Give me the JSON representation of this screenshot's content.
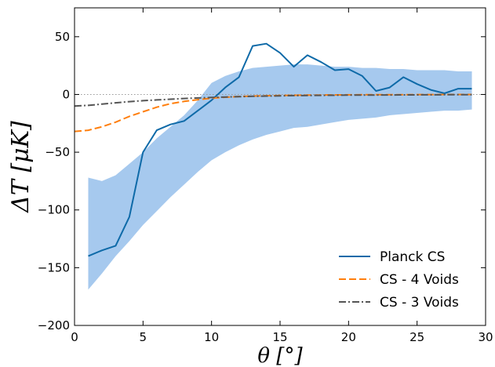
{
  "chart_data": {
    "type": "line",
    "title": "",
    "xlabel": "θ [°]",
    "ylabel": "ΔT [μK]",
    "xlim": [
      0,
      30
    ],
    "ylim": [
      -200,
      75
    ],
    "xticks": [
      0,
      5,
      10,
      15,
      20,
      25,
      30
    ],
    "yticks": [
      -200,
      -150,
      -100,
      -50,
      0,
      50
    ],
    "grid": false,
    "legend_position": "lower-right",
    "zero_line": true,
    "band": {
      "color": "#a6c9ee",
      "x": [
        1,
        2,
        3,
        4,
        5,
        6,
        7,
        8,
        9,
        10,
        11,
        12,
        13,
        14,
        15,
        16,
        17,
        18,
        19,
        20,
        21,
        22,
        23,
        24,
        25,
        26,
        27,
        28,
        29
      ],
      "upper": [
        -72,
        -75,
        -70,
        -60,
        -50,
        -38,
        -28,
        -18,
        -5,
        10,
        16,
        20,
        23,
        24,
        25,
        26,
        26,
        25,
        24,
        24,
        23,
        23,
        22,
        22,
        21,
        21,
        21,
        20,
        20
      ],
      "lower": [
        -169,
        -155,
        -140,
        -127,
        -113,
        -101,
        -89,
        -78,
        -67,
        -57,
        -50,
        -44,
        -39,
        -35,
        -32,
        -29,
        -28,
        -26,
        -24,
        -22,
        -21,
        -20,
        -18,
        -17,
        -16,
        -15,
        -14,
        -14,
        -13
      ]
    },
    "series": [
      {
        "name": "Planck CS",
        "color": "#0e6aa8",
        "dash": "solid",
        "x": [
          1,
          2,
          3,
          4,
          5,
          6,
          7,
          8,
          9,
          10,
          11,
          12,
          13,
          14,
          15,
          16,
          17,
          18,
          19,
          20,
          21,
          22,
          23,
          24,
          25,
          26,
          27,
          28,
          29
        ],
        "y": [
          -140,
          -135,
          -131,
          -106,
          -50,
          -31,
          -26,
          -23,
          -14,
          -5,
          6,
          15,
          42,
          44,
          36,
          24,
          34,
          28,
          21,
          22,
          16,
          3,
          6,
          15,
          9,
          4,
          1,
          5,
          5
        ]
      },
      {
        "name": "CS - 4 Voids",
        "color": "#ff7f0e",
        "dash": "dashed",
        "x": [
          0,
          1,
          2,
          3,
          4,
          5,
          6,
          7,
          8,
          9,
          10,
          11,
          12,
          13,
          14,
          15,
          16,
          17,
          18,
          19,
          20,
          22,
          24,
          26,
          28,
          29
        ],
        "y": [
          -32,
          -31,
          -28,
          -24,
          -19,
          -15,
          -11,
          -8,
          -6,
          -4.5,
          -3.2,
          -2.4,
          -1.8,
          -1.4,
          -1.1,
          -0.9,
          -0.7,
          -0.6,
          -0.5,
          -0.4,
          -0.3,
          -0.2,
          -0.15,
          -0.1,
          -0.05,
          0
        ]
      },
      {
        "name": "CS - 3 Voids",
        "color": "#555555",
        "dash": "dashdot",
        "x": [
          0,
          1,
          2,
          3,
          4,
          5,
          6,
          7,
          8,
          9,
          10,
          11,
          12,
          13,
          14,
          15,
          16,
          18,
          20,
          22,
          24,
          26,
          28,
          29
        ],
        "y": [
          -10,
          -9.5,
          -8.3,
          -7.2,
          -6.2,
          -5.4,
          -4.7,
          -4.1,
          -3.5,
          -3,
          -2.6,
          -2.2,
          -1.9,
          -1.6,
          -1.4,
          -1.2,
          -1,
          -0.8,
          -0.6,
          -0.5,
          -0.4,
          -0.3,
          -0.2,
          -0.2
        ]
      }
    ]
  }
}
